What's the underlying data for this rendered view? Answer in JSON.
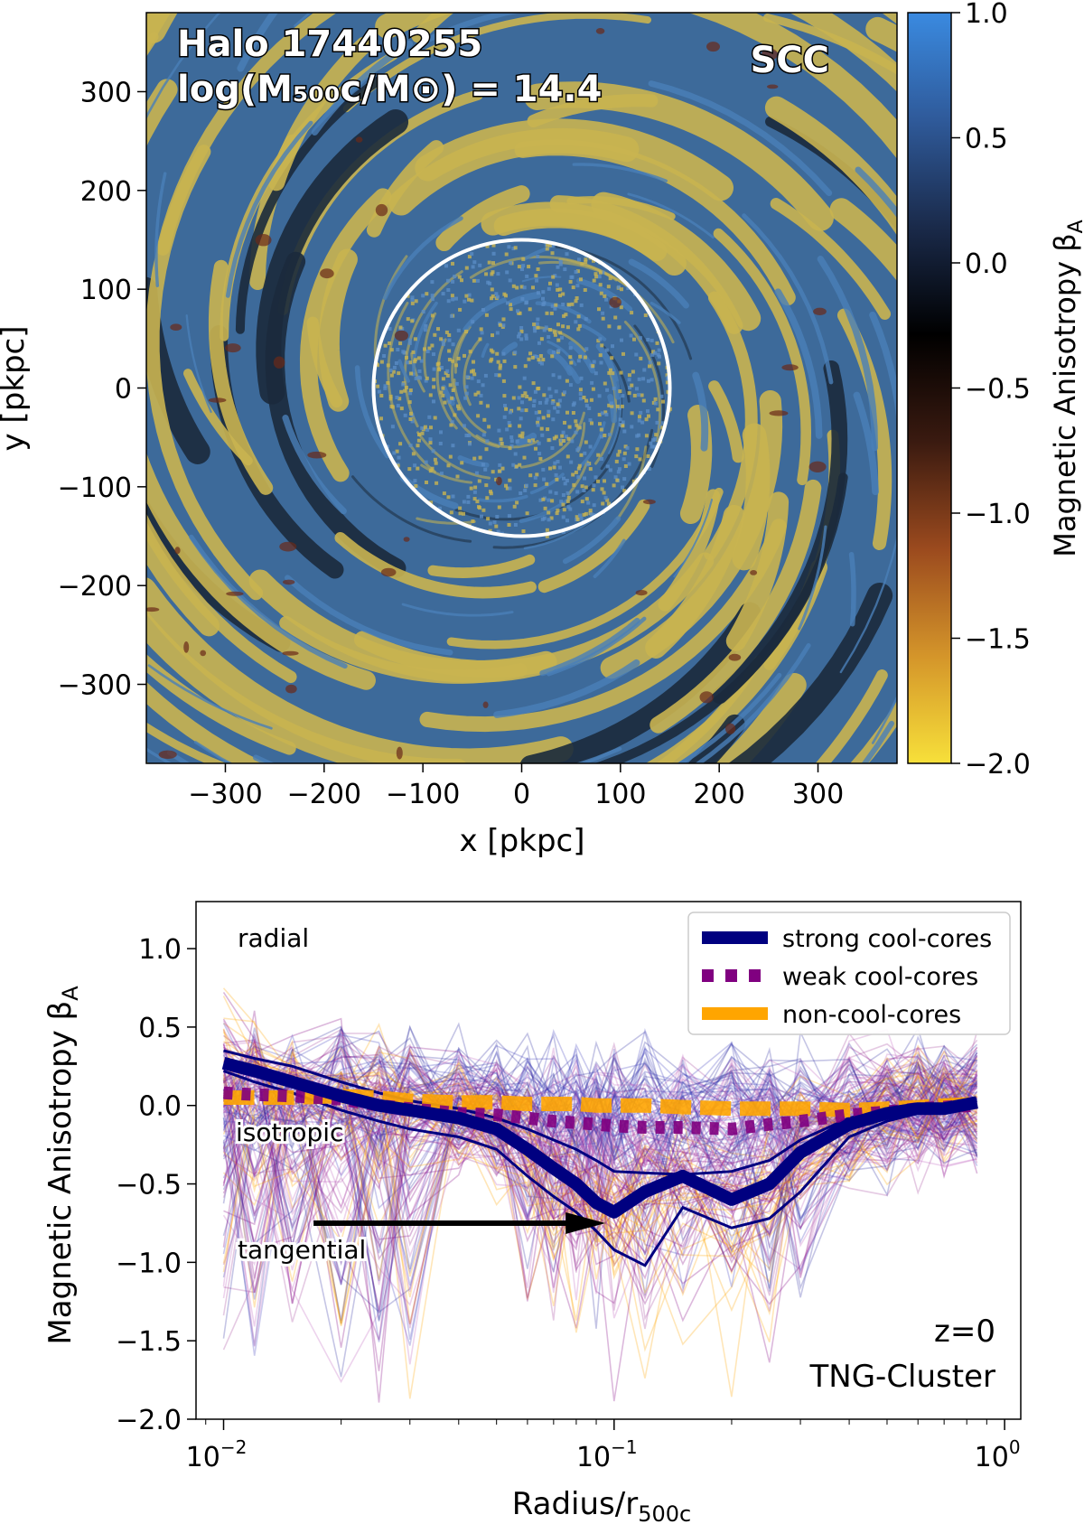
{
  "chart_data": [
    {
      "type": "heatmap",
      "panel": "map",
      "title_lines": [
        "Halo 17440255",
        "log(M500c/M⊙) = 14.4"
      ],
      "halo_id": "Halo 17440255",
      "mass_label": "log(M₅₀₀c/M⊙) = 14.4",
      "tag": "SCC",
      "xlabel": "x [pkpc]",
      "ylabel": "y [pkpc]",
      "xlim": [
        -380,
        380
      ],
      "ylim": [
        -380,
        380
      ],
      "xticks": [
        -300,
        -200,
        -100,
        0,
        100,
        200,
        300
      ],
      "yticks": [
        300,
        200,
        100,
        0,
        -100,
        -200,
        -300
      ],
      "xtick_labels": [
        "−300",
        "−200",
        "−100",
        "0",
        "100",
        "200",
        "300"
      ],
      "ytick_labels": [
        "300",
        "200",
        "100",
        "0",
        "−100",
        "−200",
        "−300"
      ],
      "circle_radius_pkpc": 150,
      "colorbar": {
        "label": "Magnetic Anisotropy β",
        "label_sub": "A",
        "range": [
          -2.0,
          1.0
        ],
        "ticks": [
          1.0,
          0.5,
          0.0,
          -0.5,
          -1.0,
          -1.5,
          -2.0
        ],
        "tick_labels": [
          "1.0",
          "0.5",
          "0.0",
          "−0.5",
          "−1.0",
          "−1.5",
          "−2.0"
        ],
        "stops": [
          "#f7e03a",
          "#d4952a",
          "#9b4a1e",
          "#3a1a10",
          "#000000",
          "#1a2a4a",
          "#2f5a9a",
          "#3a8ae0"
        ]
      },
      "colors": {
        "yellow": "#c9b450",
        "blue": "#3d6a9a",
        "dark": "#1b2a3c"
      }
    },
    {
      "type": "line",
      "panel": "profile",
      "xlabel": "Radius/r",
      "xlabel_sub": "500c",
      "ylabel": "Magnetic Anisotropy β",
      "ylabel_sub": "A",
      "xscale": "log",
      "xlim": [
        0.0085,
        1.1
      ],
      "ylim": [
        -2.0,
        1.3
      ],
      "yticks": [
        1.0,
        0.5,
        0.0,
        -0.5,
        -1.0,
        -1.5,
        -2.0
      ],
      "ytick_labels": [
        "1.0",
        "0.5",
        "0.0",
        "−0.5",
        "−1.0",
        "−1.5",
        "−2.0"
      ],
      "xtick_major": [
        0.01,
        0.1,
        1.0
      ],
      "xtick_labels": [
        {
          "base": "10",
          "exp": "−2"
        },
        {
          "base": "10",
          "exp": "−1"
        },
        {
          "base": "10",
          "exp": "0"
        }
      ],
      "annotations": {
        "radial": "radial",
        "isotropic": "isotropic",
        "tangential": "tangential",
        "redshift": "z=0",
        "simulation": "TNG-Cluster"
      },
      "arrow": {
        "from": [
          0.017,
          -0.75
        ],
        "to": [
          0.095,
          -0.75
        ]
      },
      "legend": {
        "placement": "top-right",
        "entries": [
          {
            "label": "strong cool-cores",
            "color": "#000080",
            "style": "solid"
          },
          {
            "label": "weak cool-cores",
            "color": "#800080",
            "style": "dotted"
          },
          {
            "label": "non-cool-cores",
            "color": "#ffa500",
            "style": "dashed"
          }
        ]
      },
      "series": [
        {
          "name": "strong cool-cores",
          "color": "#000080",
          "x": [
            0.01,
            0.012,
            0.015,
            0.02,
            0.025,
            0.03,
            0.04,
            0.05,
            0.06,
            0.07,
            0.08,
            0.09,
            0.1,
            0.12,
            0.15,
            0.2,
            0.25,
            0.3,
            0.4,
            0.5,
            0.6,
            0.7,
            0.85
          ],
          "values": [
            0.27,
            0.22,
            0.15,
            0.06,
            0.0,
            -0.03,
            -0.08,
            -0.15,
            -0.28,
            -0.4,
            -0.5,
            -0.62,
            -0.68,
            -0.55,
            -0.45,
            -0.6,
            -0.5,
            -0.3,
            -0.12,
            -0.05,
            -0.02,
            -0.02,
            0.02
          ],
          "band_upper": [
            0.35,
            0.3,
            0.25,
            0.15,
            0.08,
            0.03,
            -0.02,
            -0.08,
            -0.15,
            -0.22,
            -0.28,
            -0.35,
            -0.42,
            -0.43,
            -0.44,
            -0.42,
            -0.35,
            -0.22,
            -0.08,
            -0.03,
            0.0,
            0.0,
            0.03
          ],
          "band_lower": [
            0.22,
            0.15,
            0.08,
            -0.03,
            -0.1,
            -0.15,
            -0.2,
            -0.28,
            -0.45,
            -0.58,
            -0.68,
            -0.8,
            -0.92,
            -1.02,
            -0.65,
            -0.78,
            -0.72,
            -0.55,
            -0.2,
            -0.1,
            -0.05,
            -0.03,
            0.0
          ]
        },
        {
          "name": "weak cool-cores",
          "color": "#800080",
          "x": [
            0.01,
            0.012,
            0.015,
            0.02,
            0.025,
            0.03,
            0.04,
            0.05,
            0.06,
            0.07,
            0.08,
            0.09,
            0.1,
            0.12,
            0.15,
            0.2,
            0.25,
            0.3,
            0.4,
            0.5,
            0.6,
            0.7,
            0.85
          ],
          "values": [
            0.08,
            0.07,
            0.06,
            0.04,
            0.0,
            -0.02,
            -0.05,
            -0.06,
            -0.08,
            -0.1,
            -0.11,
            -0.12,
            -0.13,
            -0.14,
            -0.14,
            -0.15,
            -0.12,
            -0.1,
            -0.06,
            -0.04,
            -0.02,
            -0.01,
            0.0
          ]
        },
        {
          "name": "non-cool-cores",
          "color": "#ffa500",
          "x": [
            0.01,
            0.012,
            0.015,
            0.02,
            0.025,
            0.03,
            0.04,
            0.05,
            0.06,
            0.07,
            0.08,
            0.09,
            0.1,
            0.12,
            0.15,
            0.2,
            0.25,
            0.3,
            0.4,
            0.5,
            0.6,
            0.7,
            0.85
          ],
          "values": [
            0.05,
            0.05,
            0.05,
            0.06,
            0.05,
            0.03,
            0.02,
            0.02,
            0.01,
            0.01,
            0.01,
            0.0,
            0.0,
            0.0,
            -0.01,
            -0.02,
            -0.02,
            -0.02,
            -0.03,
            -0.02,
            -0.01,
            0.0,
            0.01
          ]
        }
      ]
    }
  ]
}
